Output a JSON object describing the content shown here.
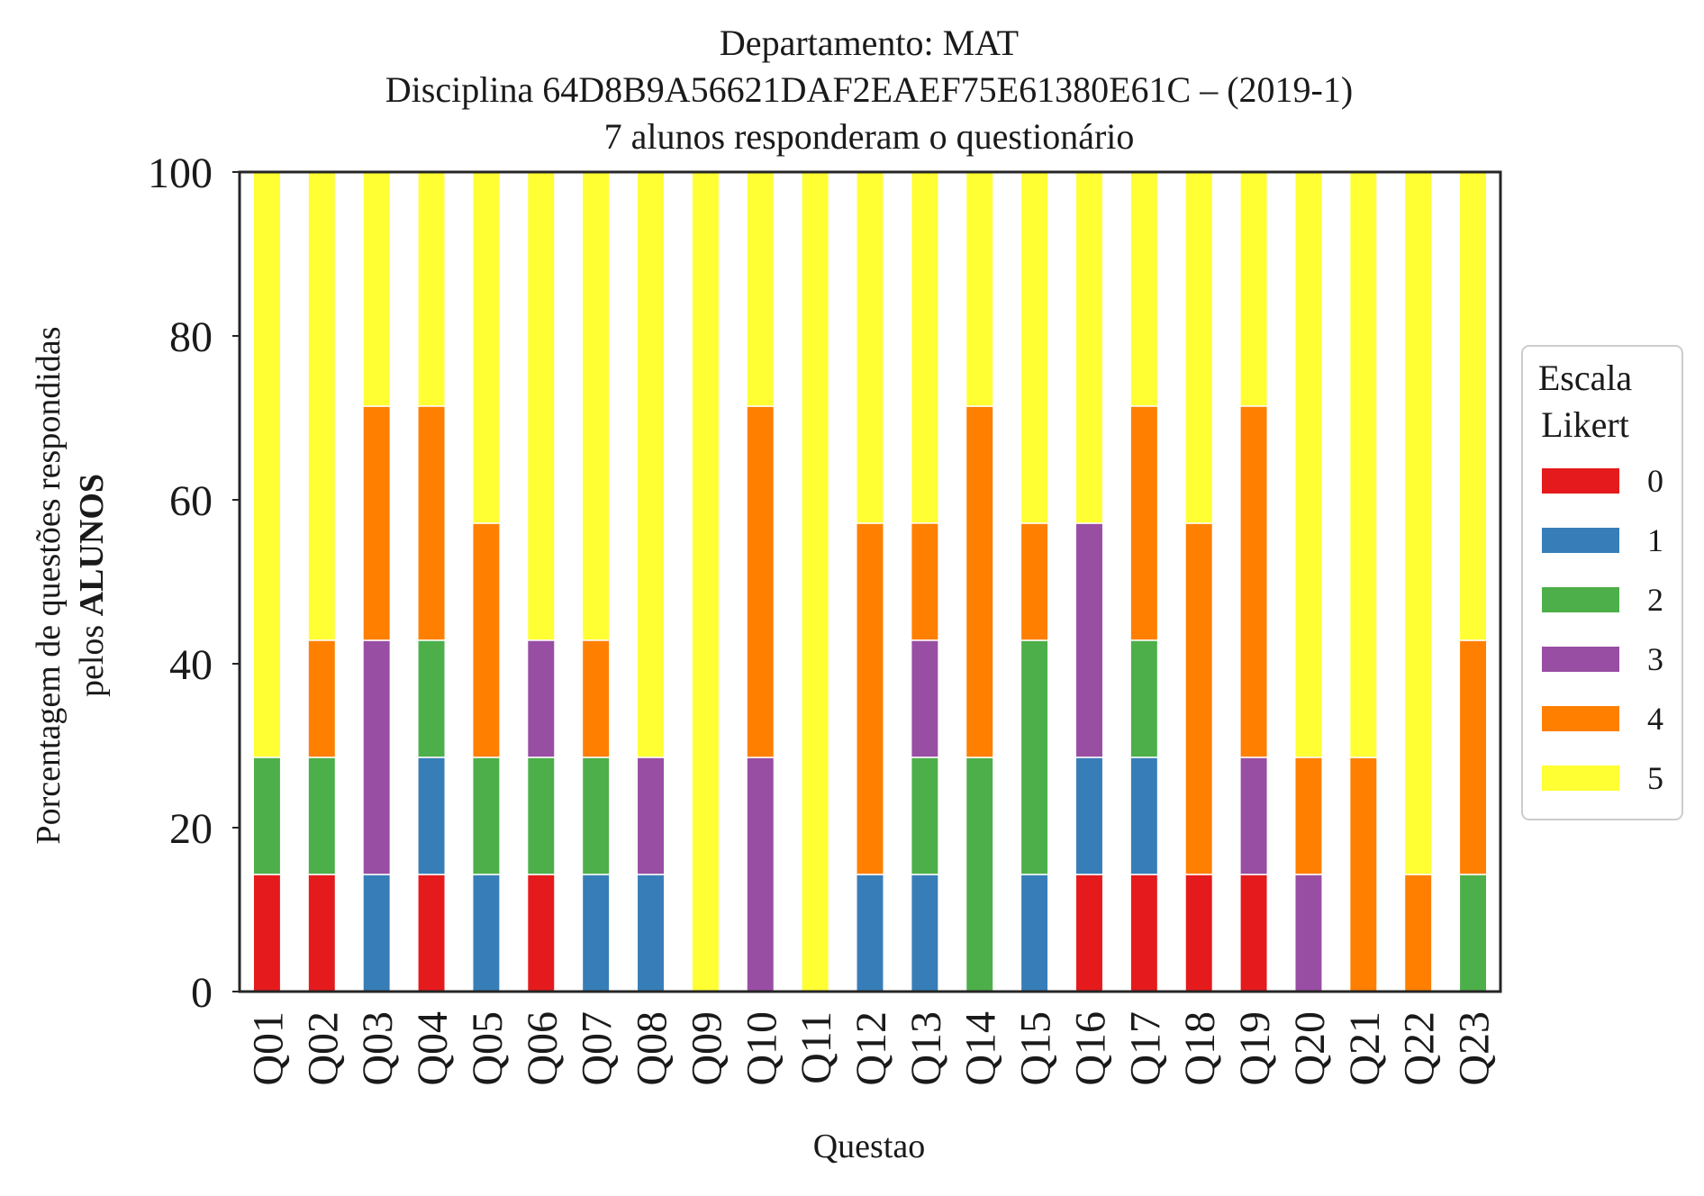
{
  "chart_data": {
    "type": "bar",
    "stacked": true,
    "title_lines": [
      "Departamento: MAT",
      "Disciplina 64D8B9A56621DAF2EAEF75E61380E61C – (2019-1)",
      "7 alunos responderam o questionário"
    ],
    "xlabel": "Questao",
    "ylabel_line1": "Porcentagem de questões respondidas",
    "ylabel_line2_prefix": "pelos ",
    "ylabel_line2_bold": "ALUNOS",
    "ylim": [
      0,
      100
    ],
    "yticks": [
      "0",
      "20",
      "40",
      "60",
      "80",
      "100"
    ],
    "grid": false,
    "legend": {
      "title_line1": "Escala",
      "title_line2": "Likert",
      "placement": "right"
    },
    "categories": [
      "Q01",
      "Q02",
      "Q03",
      "Q04",
      "Q05",
      "Q06",
      "Q07",
      "Q08",
      "Q09",
      "Q10",
      "Q11",
      "Q12",
      "Q13",
      "Q14",
      "Q15",
      "Q16",
      "Q17",
      "Q18",
      "Q19",
      "Q20",
      "Q21",
      "Q22",
      "Q23"
    ],
    "series": [
      {
        "name": "0",
        "color": "#e41a1c",
        "values": [
          14.29,
          14.29,
          0,
          14.29,
          0,
          14.29,
          0,
          0,
          0,
          0,
          0,
          0,
          0,
          0,
          0,
          14.29,
          14.29,
          14.29,
          14.29,
          0,
          0,
          0,
          0
        ]
      },
      {
        "name": "1",
        "color": "#377eb8",
        "values": [
          0,
          0,
          14.29,
          14.29,
          14.29,
          0,
          14.29,
          14.29,
          0,
          0,
          0,
          14.29,
          14.29,
          0,
          14.29,
          14.29,
          14.29,
          0,
          0,
          0,
          0,
          0,
          0
        ]
      },
      {
        "name": "2",
        "color": "#4daf4a",
        "values": [
          14.29,
          14.29,
          0,
          14.29,
          14.29,
          14.29,
          14.29,
          0,
          0,
          0,
          0,
          0,
          14.29,
          28.57,
          28.57,
          0,
          14.29,
          0,
          0,
          0,
          0,
          0,
          14.29
        ]
      },
      {
        "name": "3",
        "color": "#984ea3",
        "values": [
          0,
          0,
          28.57,
          0,
          0,
          14.29,
          0,
          14.29,
          0,
          28.57,
          0,
          0,
          14.29,
          0,
          0,
          28.57,
          0,
          0,
          14.29,
          14.29,
          0,
          0,
          0
        ]
      },
      {
        "name": "4",
        "color": "#ff7f00",
        "values": [
          0,
          14.29,
          28.57,
          28.57,
          28.57,
          0,
          14.29,
          0,
          0,
          42.86,
          0,
          42.86,
          14.29,
          42.86,
          14.29,
          0,
          28.57,
          42.86,
          42.86,
          14.29,
          28.57,
          14.29,
          28.57
        ]
      },
      {
        "name": "5",
        "color": "#ffff33",
        "values": [
          71.43,
          57.14,
          28.57,
          28.57,
          42.86,
          57.14,
          57.14,
          71.43,
          100,
          28.57,
          100,
          42.86,
          42.86,
          28.57,
          42.86,
          42.86,
          28.57,
          42.86,
          28.57,
          71.43,
          71.43,
          85.71,
          57.14
        ]
      }
    ]
  }
}
